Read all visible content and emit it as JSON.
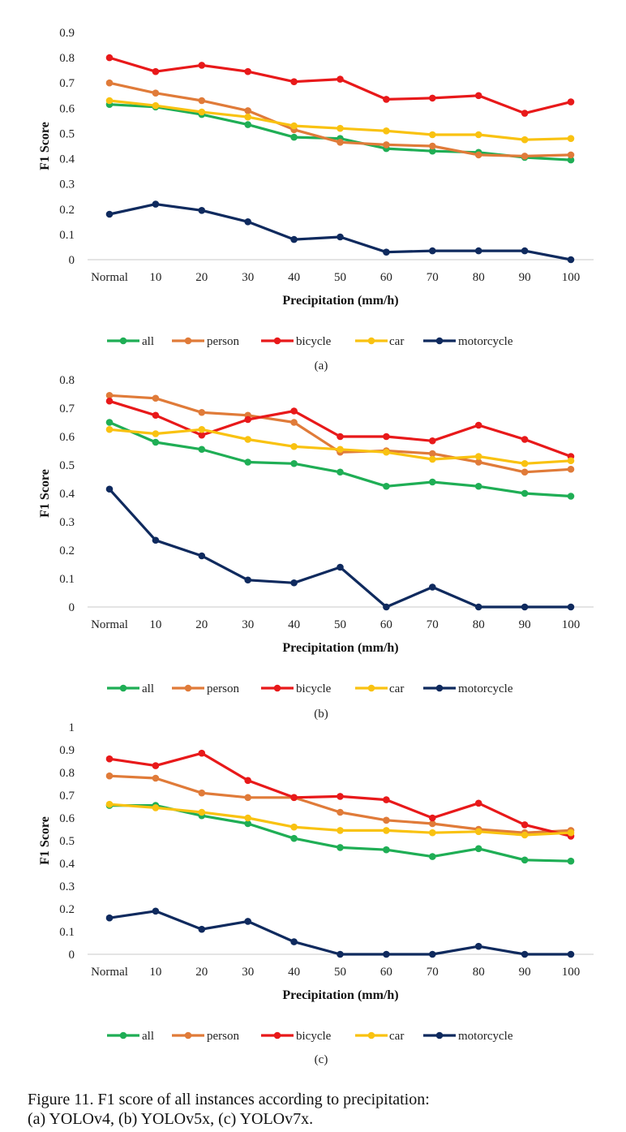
{
  "colors": {
    "all": "#1fae55",
    "person": "#e07b39",
    "bicycle": "#e8191a",
    "car": "#f9c211",
    "motorcycle": "#0f2a5e",
    "axis_line": "#c8c8c8"
  },
  "chart_data": [
    {
      "type": "line",
      "label": "(a)",
      "xlabel": "Precipitation (mm/h)",
      "ylabel": "F1 Score",
      "categories": [
        "Normal",
        "10",
        "20",
        "30",
        "40",
        "50",
        "60",
        "70",
        "80",
        "90",
        "100"
      ],
      "y_ticks": [
        "0",
        "0.1",
        "0.2",
        "0.3",
        "0.4",
        "0.5",
        "0.6",
        "0.7",
        "0.8",
        "0.9"
      ],
      "ylim": [
        0,
        0.9
      ],
      "grid": false,
      "legend_position": "bottom",
      "series": [
        {
          "name": "all",
          "values": [
            0.615,
            0.605,
            0.575,
            0.535,
            0.485,
            0.48,
            0.44,
            0.43,
            0.425,
            0.405,
            0.395
          ]
        },
        {
          "name": "person",
          "values": [
            0.7,
            0.66,
            0.63,
            0.59,
            0.515,
            0.465,
            0.455,
            0.45,
            0.415,
            0.41,
            0.415
          ]
        },
        {
          "name": "bicycle",
          "values": [
            0.8,
            0.745,
            0.77,
            0.745,
            0.705,
            0.715,
            0.635,
            0.64,
            0.65,
            0.58,
            0.625
          ]
        },
        {
          "name": "car",
          "values": [
            0.63,
            0.61,
            0.585,
            0.565,
            0.53,
            0.52,
            0.51,
            0.495,
            0.495,
            0.475,
            0.48
          ]
        },
        {
          "name": "motorcycle",
          "values": [
            0.18,
            0.22,
            0.195,
            0.15,
            0.08,
            0.09,
            0.03,
            0.035,
            0.035,
            0.035,
            0.0
          ]
        }
      ]
    },
    {
      "type": "line",
      "label": "(b)",
      "xlabel": "Precipitation (mm/h)",
      "ylabel": "F1 Score",
      "categories": [
        "Normal",
        "10",
        "20",
        "30",
        "40",
        "50",
        "60",
        "70",
        "80",
        "90",
        "100"
      ],
      "y_ticks": [
        "0",
        "0.1",
        "0.2",
        "0.3",
        "0.4",
        "0.5",
        "0.6",
        "0.7",
        "0.8"
      ],
      "ylim": [
        0,
        0.8
      ],
      "grid": false,
      "legend_position": "bottom",
      "series": [
        {
          "name": "all",
          "values": [
            0.65,
            0.58,
            0.555,
            0.51,
            0.505,
            0.475,
            0.425,
            0.44,
            0.425,
            0.4,
            0.39
          ]
        },
        {
          "name": "person",
          "values": [
            0.745,
            0.735,
            0.685,
            0.675,
            0.65,
            0.545,
            0.55,
            0.54,
            0.51,
            0.475,
            0.485
          ]
        },
        {
          "name": "bicycle",
          "values": [
            0.725,
            0.675,
            0.605,
            0.66,
            0.69,
            0.6,
            0.6,
            0.585,
            0.64,
            0.59,
            0.53
          ]
        },
        {
          "name": "car",
          "values": [
            0.625,
            0.61,
            0.625,
            0.59,
            0.565,
            0.555,
            0.545,
            0.52,
            0.53,
            0.505,
            0.515
          ]
        },
        {
          "name": "motorcycle",
          "values": [
            0.415,
            0.235,
            0.18,
            0.095,
            0.085,
            0.14,
            0.0,
            0.07,
            0.0,
            0.0,
            0.0
          ]
        }
      ]
    },
    {
      "type": "line",
      "label": "(c)",
      "xlabel": "Precipitation (mm/h)",
      "ylabel": "F1 Score",
      "categories": [
        "Normal",
        "10",
        "20",
        "30",
        "40",
        "50",
        "60",
        "70",
        "80",
        "90",
        "100"
      ],
      "y_ticks": [
        "0",
        "0.1",
        "0.2",
        "0.3",
        "0.4",
        "0.5",
        "0.6",
        "0.7",
        "0.8",
        "0.9",
        "1"
      ],
      "ylim": [
        0,
        1
      ],
      "grid": false,
      "legend_position": "bottom",
      "series": [
        {
          "name": "all",
          "values": [
            0.655,
            0.655,
            0.61,
            0.575,
            0.51,
            0.47,
            0.46,
            0.43,
            0.465,
            0.415,
            0.41
          ]
        },
        {
          "name": "person",
          "values": [
            0.785,
            0.775,
            0.71,
            0.69,
            0.69,
            0.625,
            0.59,
            0.575,
            0.55,
            0.535,
            0.545
          ]
        },
        {
          "name": "bicycle",
          "values": [
            0.86,
            0.83,
            0.885,
            0.765,
            0.69,
            0.695,
            0.68,
            0.6,
            0.665,
            0.57,
            0.52
          ]
        },
        {
          "name": "car",
          "values": [
            0.66,
            0.645,
            0.625,
            0.6,
            0.56,
            0.545,
            0.545,
            0.535,
            0.54,
            0.525,
            0.535
          ]
        },
        {
          "name": "motorcycle",
          "values": [
            0.16,
            0.19,
            0.11,
            0.145,
            0.055,
            0.0,
            0.0,
            0.0,
            0.035,
            0.0,
            0.0
          ]
        }
      ]
    }
  ],
  "caption": {
    "line1": "Figure 11. F1 score of all instances according to precipitation:",
    "line2": "(a) YOLOv4, (b) YOLOv5x, (c) YOLOv7x."
  }
}
